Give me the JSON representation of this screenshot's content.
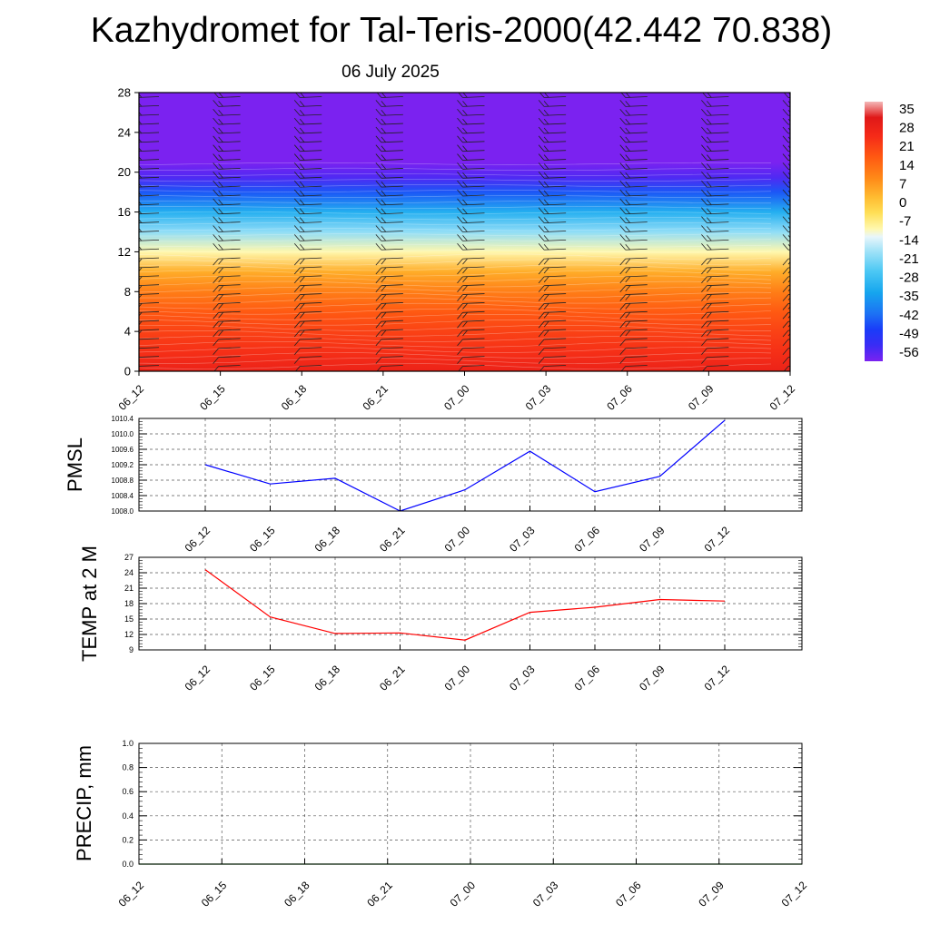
{
  "page": {
    "title": "Kazhydromet for Tal-Teris-2000(42.442 70.838)",
    "subtitle": "06 July 2025"
  },
  "chart_data": [
    {
      "id": "cross-section",
      "type": "heatmap",
      "title": "",
      "xlabel": "",
      "ylabel": "",
      "x_tick_labels": [
        "06_12",
        "06_15",
        "06_18",
        "06_21",
        "07_00",
        "07_03",
        "07_06",
        "07_09",
        "07_12"
      ],
      "y_ticks": [
        0,
        4,
        8,
        12,
        16,
        20,
        24,
        28
      ],
      "ylim": [
        0,
        28
      ],
      "colorbar": {
        "labels": [
          "35",
          "28",
          "21",
          "14",
          "7",
          "0",
          "-7",
          "-14",
          "-21",
          "-28",
          "-35",
          "-42",
          "-49",
          "-56"
        ],
        "range": [
          -60,
          38
        ]
      },
      "temperature_profile": {
        "levels": [
          0,
          2,
          4,
          6,
          8,
          10,
          12,
          14,
          16,
          18,
          19.5,
          21,
          24,
          28
        ],
        "values": [
          28,
          24,
          21,
          17,
          11,
          4,
          -10,
          -20,
          -32,
          -45,
          -56,
          -60,
          -60,
          -60
        ]
      },
      "wind_barbs": "yes"
    },
    {
      "id": "pmsl",
      "type": "line",
      "title": "",
      "xlabel": "",
      "ylabel": "PMSL",
      "categories": [
        "06_12",
        "06_15",
        "06_18",
        "06_21",
        "07_00",
        "07_03",
        "07_06",
        "07_09",
        "07_12"
      ],
      "series": [
        {
          "values": [
            1009.2,
            1008.7,
            1008.85,
            1008.0,
            1008.55,
            1009.55,
            1008.5,
            1008.9,
            1010.35
          ],
          "color": "#0000ff"
        }
      ],
      "y_ticks": [
        "1008.0",
        "1008.4",
        "1008.8",
        "1009.2",
        "1009.6",
        "1010.0",
        "1010.4"
      ],
      "ylim": [
        1008.0,
        1010.4
      ],
      "grid": true
    },
    {
      "id": "temp2m",
      "type": "line",
      "title": "",
      "xlabel": "",
      "ylabel": "TEMP at 2 M",
      "categories": [
        "06_12",
        "06_15",
        "06_18",
        "06_21",
        "07_00",
        "07_03",
        "07_06",
        "07_09",
        "07_12"
      ],
      "series": [
        {
          "values": [
            24.6,
            15.4,
            12.2,
            12.3,
            10.9,
            16.3,
            17.3,
            18.8,
            18.5
          ],
          "color": "#ff0000"
        }
      ],
      "y_ticks": [
        "9",
        "12",
        "15",
        "18",
        "21",
        "24",
        "27"
      ],
      "ylim": [
        9,
        27
      ],
      "grid": true
    },
    {
      "id": "precip",
      "type": "line",
      "title": "",
      "xlabel": "",
      "ylabel": "PRECIP, mm",
      "categories": [
        "06_12",
        "06_15",
        "06_18",
        "06_21",
        "07_00",
        "07_03",
        "07_06",
        "07_09",
        "07_12"
      ],
      "series": [
        {
          "values": [
            0,
            0,
            0,
            0,
            0,
            0,
            0,
            0,
            0
          ],
          "color": "#008000"
        }
      ],
      "y_ticks": [
        "0.0",
        "0.2",
        "0.4",
        "0.6",
        "0.8",
        "1.0"
      ],
      "ylim": [
        0,
        1
      ],
      "grid": true
    }
  ]
}
